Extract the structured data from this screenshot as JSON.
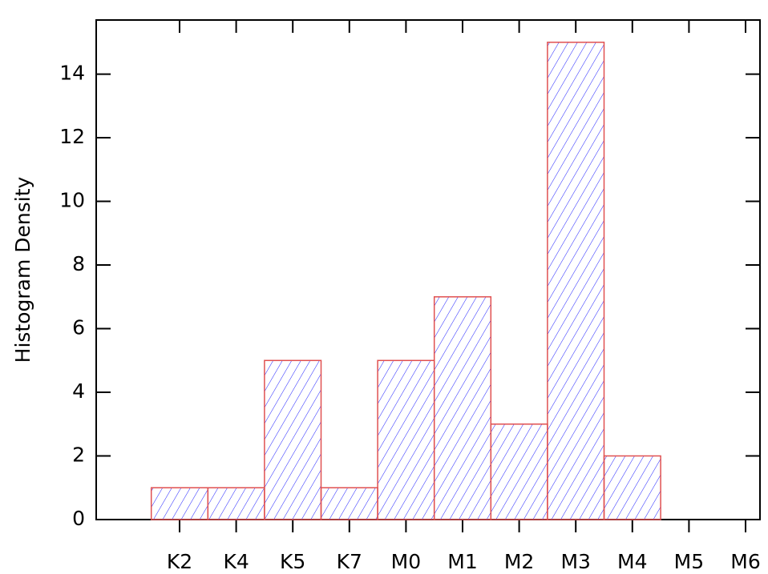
{
  "chart_data": {
    "type": "histogram",
    "y_label": "Histogram Density",
    "categories": [
      "K2",
      "K4",
      "K5",
      "K7",
      "M0",
      "M1",
      "M2",
      "M3",
      "M4",
      "M5",
      "M6"
    ],
    "values": [
      1,
      1,
      5,
      1,
      5,
      7,
      3,
      15,
      2,
      0,
      null
    ],
    "color": "#2020ff",
    "edgecolor": "#e05050",
    "hatch": "//",
    "ylim": [
      0,
      15.7
    ],
    "yticks": [
      0,
      2,
      4,
      6,
      8,
      10,
      12,
      14
    ],
    "grid": false
  }
}
